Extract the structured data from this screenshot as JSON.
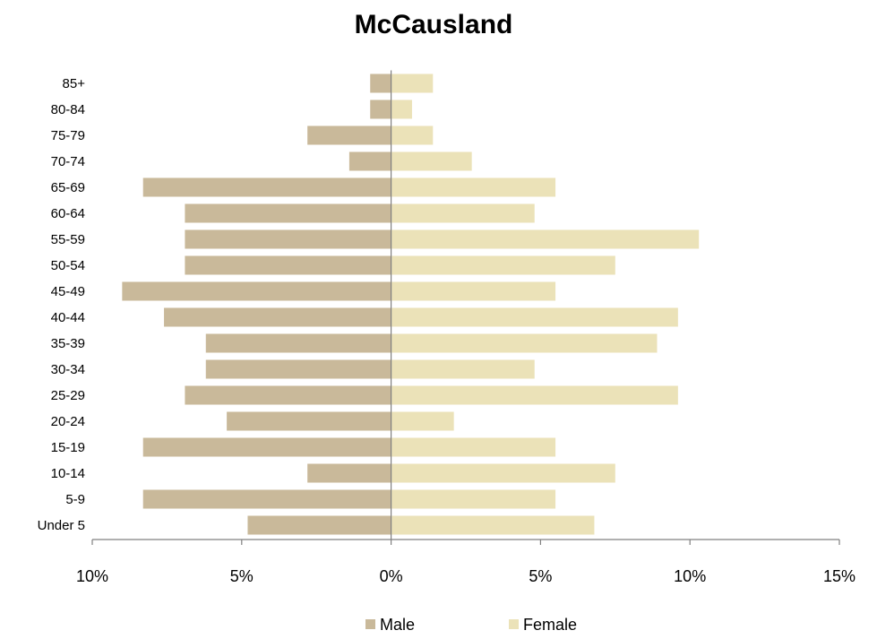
{
  "chart_data": {
    "type": "bar",
    "orientation": "horizontal",
    "layout": "population-pyramid",
    "title": "McCausland",
    "xlabel": "",
    "ylabel": "",
    "categories": [
      "Under 5",
      "5-9",
      "10-14",
      "15-19",
      "20-24",
      "25-29",
      "30-34",
      "35-39",
      "40-44",
      "45-49",
      "50-54",
      "55-59",
      "60-64",
      "65-69",
      "70-74",
      "75-79",
      "80-84",
      "85+"
    ],
    "series": [
      {
        "name": "Male",
        "side": "left",
        "color": "#c9b99a",
        "values": [
          4.8,
          8.3,
          2.8,
          8.3,
          5.5,
          6.9,
          6.2,
          6.2,
          7.6,
          9.0,
          6.9,
          6.9,
          6.9,
          8.3,
          1.4,
          2.8,
          0.7,
          0.7
        ]
      },
      {
        "name": "Female",
        "side": "right",
        "color": "#ebe2b8",
        "values": [
          6.8,
          5.5,
          7.5,
          5.5,
          2.1,
          9.6,
          4.8,
          8.9,
          9.6,
          5.5,
          7.5,
          10.3,
          4.8,
          5.5,
          2.7,
          1.4,
          0.7,
          1.4
        ]
      }
    ],
    "xlim": [
      -10,
      15
    ],
    "xticks": [
      -10,
      -5,
      0,
      5,
      10,
      15
    ],
    "xtick_labels": [
      "10%",
      "5%",
      "0%",
      "5%",
      "10%",
      "15%"
    ],
    "grid": false,
    "legend_position": "bottom"
  }
}
